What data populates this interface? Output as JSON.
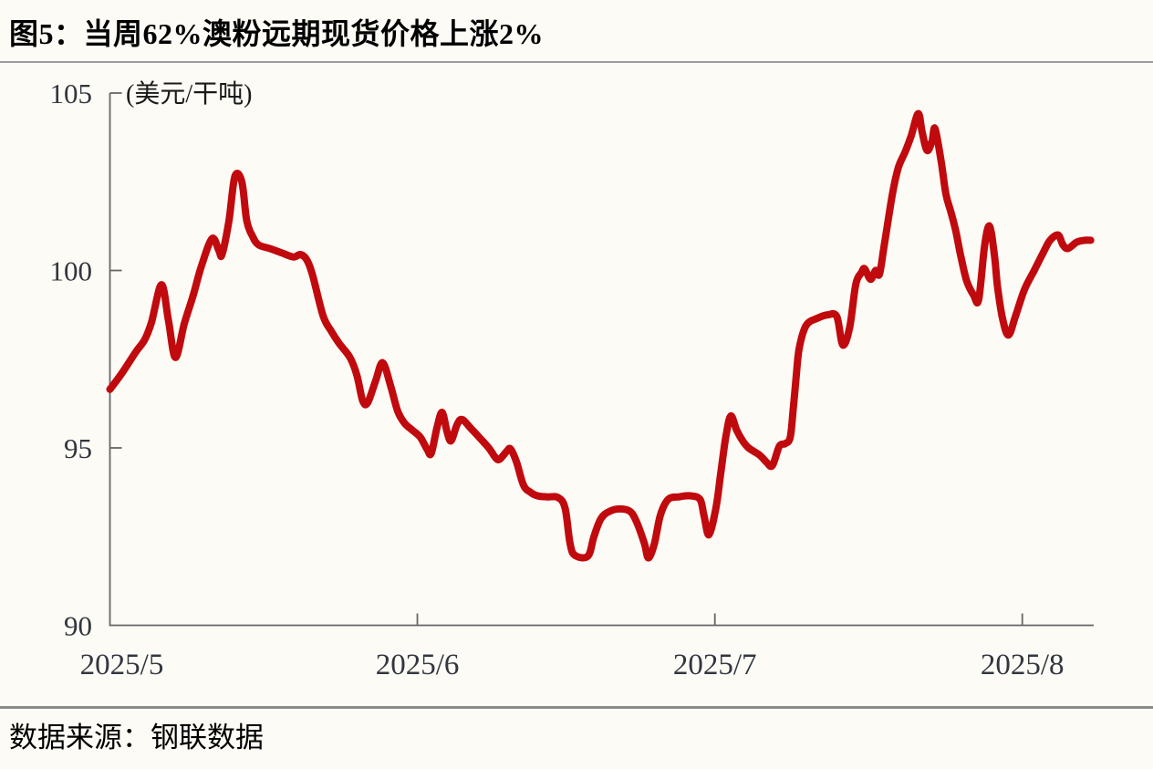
{
  "figure": {
    "title": "图5：当周62%澳粉远期现货价格上涨2%",
    "source": "数据来源：钢联数据"
  },
  "chart_data": {
    "type": "line",
    "title": "当周62%澳粉远期现货价格上涨2%",
    "unit_label": "(美元/干吨)",
    "series_name": "62%澳粉远期现货价格",
    "line_color": "#c00a0e",
    "axis_color": "#666666",
    "tick_label_color": "#31363f",
    "grid": "off",
    "legend": "none",
    "ylim": [
      90,
      105
    ],
    "y_ticks": [
      105,
      100,
      95,
      90
    ],
    "x_domain_days": [
      0,
      99.2
    ],
    "x_ticks": [
      {
        "label": "2025/5",
        "day": 0
      },
      {
        "label": "2025/6",
        "day": 31
      },
      {
        "label": "2025/7",
        "day": 61
      },
      {
        "label": "2025/8",
        "day": 92
      }
    ],
    "points": [
      [
        0,
        96.65
      ],
      [
        1.2,
        97.1
      ],
      [
        2.6,
        97.7
      ],
      [
        3.5,
        98.05
      ],
      [
        4.2,
        98.55
      ],
      [
        5.2,
        99.6
      ],
      [
        5.9,
        98.6
      ],
      [
        6.6,
        97.55
      ],
      [
        7.5,
        98.5
      ],
      [
        8.4,
        99.3
      ],
      [
        9.2,
        100.1
      ],
      [
        10.3,
        100.9
      ],
      [
        11.0,
        100.55
      ],
      [
        11.3,
        100.45
      ],
      [
        12.0,
        101.4
      ],
      [
        12.6,
        102.65
      ],
      [
        13.3,
        102.5
      ],
      [
        13.8,
        101.4
      ],
      [
        14.4,
        100.95
      ],
      [
        15.0,
        100.72
      ],
      [
        16.1,
        100.62
      ],
      [
        17.3,
        100.5
      ],
      [
        18.5,
        100.38
      ],
      [
        19.2,
        100.45
      ],
      [
        19.8,
        100.32
      ],
      [
        20.4,
        99.9
      ],
      [
        21.5,
        98.72
      ],
      [
        22.3,
        98.3
      ],
      [
        23.1,
        97.95
      ],
      [
        24.2,
        97.55
      ],
      [
        24.9,
        97.05
      ],
      [
        25.5,
        96.32
      ],
      [
        26.0,
        96.28
      ],
      [
        26.8,
        96.9
      ],
      [
        27.5,
        97.4
      ],
      [
        28.3,
        96.75
      ],
      [
        29.0,
        96.05
      ],
      [
        29.7,
        95.7
      ],
      [
        30.5,
        95.5
      ],
      [
        31.3,
        95.3
      ],
      [
        32.0,
        94.95
      ],
      [
        32.4,
        94.85
      ],
      [
        33.0,
        95.6
      ],
      [
        33.5,
        96.0
      ],
      [
        34.0,
        95.45
      ],
      [
        34.4,
        95.2
      ],
      [
        35.0,
        95.65
      ],
      [
        35.5,
        95.8
      ],
      [
        36.4,
        95.55
      ],
      [
        37.3,
        95.28
      ],
      [
        38.2,
        95.0
      ],
      [
        38.9,
        94.72
      ],
      [
        39.3,
        94.68
      ],
      [
        40.0,
        94.9
      ],
      [
        40.4,
        94.97
      ],
      [
        41.0,
        94.6
      ],
      [
        41.7,
        93.95
      ],
      [
        42.4,
        93.75
      ],
      [
        43.1,
        93.65
      ],
      [
        44.1,
        93.62
      ],
      [
        45.2,
        93.6
      ],
      [
        45.9,
        93.3
      ],
      [
        46.4,
        92.3
      ],
      [
        46.9,
        91.97
      ],
      [
        48.2,
        91.95
      ],
      [
        48.8,
        92.5
      ],
      [
        49.5,
        93.0
      ],
      [
        50.3,
        93.2
      ],
      [
        51.4,
        93.28
      ],
      [
        52.5,
        93.2
      ],
      [
        53.2,
        92.85
      ],
      [
        53.9,
        92.3
      ],
      [
        54.3,
        91.9
      ],
      [
        54.9,
        92.3
      ],
      [
        55.5,
        93.1
      ],
      [
        56.3,
        93.55
      ],
      [
        57.4,
        93.62
      ],
      [
        58.5,
        93.65
      ],
      [
        59.5,
        93.55
      ],
      [
        59.9,
        93.1
      ],
      [
        60.4,
        92.55
      ],
      [
        61.1,
        93.3
      ],
      [
        61.6,
        94.3
      ],
      [
        62.1,
        95.3
      ],
      [
        62.6,
        95.9
      ],
      [
        63.2,
        95.5
      ],
      [
        63.8,
        95.2
      ],
      [
        64.4,
        95.0
      ],
      [
        65.5,
        94.8
      ],
      [
        66.2,
        94.6
      ],
      [
        66.8,
        94.5
      ],
      [
        67.5,
        95.05
      ],
      [
        68.1,
        95.12
      ],
      [
        68.6,
        95.3
      ],
      [
        68.9,
        96.1
      ],
      [
        69.2,
        97.0
      ],
      [
        69.5,
        97.8
      ],
      [
        70.2,
        98.45
      ],
      [
        71.3,
        98.65
      ],
      [
        72.4,
        98.75
      ],
      [
        73.3,
        98.7
      ],
      [
        73.9,
        97.9
      ],
      [
        74.6,
        98.4
      ],
      [
        75.2,
        99.6
      ],
      [
        75.8,
        99.95
      ],
      [
        76.1,
        100.05
      ],
      [
        76.7,
        99.75
      ],
      [
        77.2,
        100.0
      ],
      [
        77.6,
        99.9
      ],
      [
        78.1,
        100.75
      ],
      [
        78.9,
        102.15
      ],
      [
        79.5,
        102.9
      ],
      [
        80.2,
        103.35
      ],
      [
        80.8,
        103.8
      ],
      [
        81.5,
        104.42
      ],
      [
        81.9,
        103.9
      ],
      [
        82.4,
        103.38
      ],
      [
        82.9,
        103.65
      ],
      [
        83.2,
        104.0
      ],
      [
        83.8,
        103.1
      ],
      [
        84.3,
        102.15
      ],
      [
        84.8,
        101.65
      ],
      [
        85.3,
        101.1
      ],
      [
        85.8,
        100.4
      ],
      [
        86.4,
        99.7
      ],
      [
        87.1,
        99.3
      ],
      [
        87.6,
        99.18
      ],
      [
        88.2,
        100.7
      ],
      [
        88.7,
        101.25
      ],
      [
        89.2,
        100.4
      ],
      [
        89.5,
        99.55
      ],
      [
        90.0,
        98.65
      ],
      [
        90.6,
        98.18
      ],
      [
        91.3,
        98.7
      ],
      [
        92.2,
        99.45
      ],
      [
        93.2,
        100.0
      ],
      [
        94.1,
        100.5
      ],
      [
        94.8,
        100.85
      ],
      [
        95.6,
        101.0
      ],
      [
        96.1,
        100.72
      ],
      [
        96.6,
        100.62
      ],
      [
        97.5,
        100.8
      ],
      [
        98.3,
        100.85
      ],
      [
        98.9,
        100.85
      ]
    ]
  }
}
